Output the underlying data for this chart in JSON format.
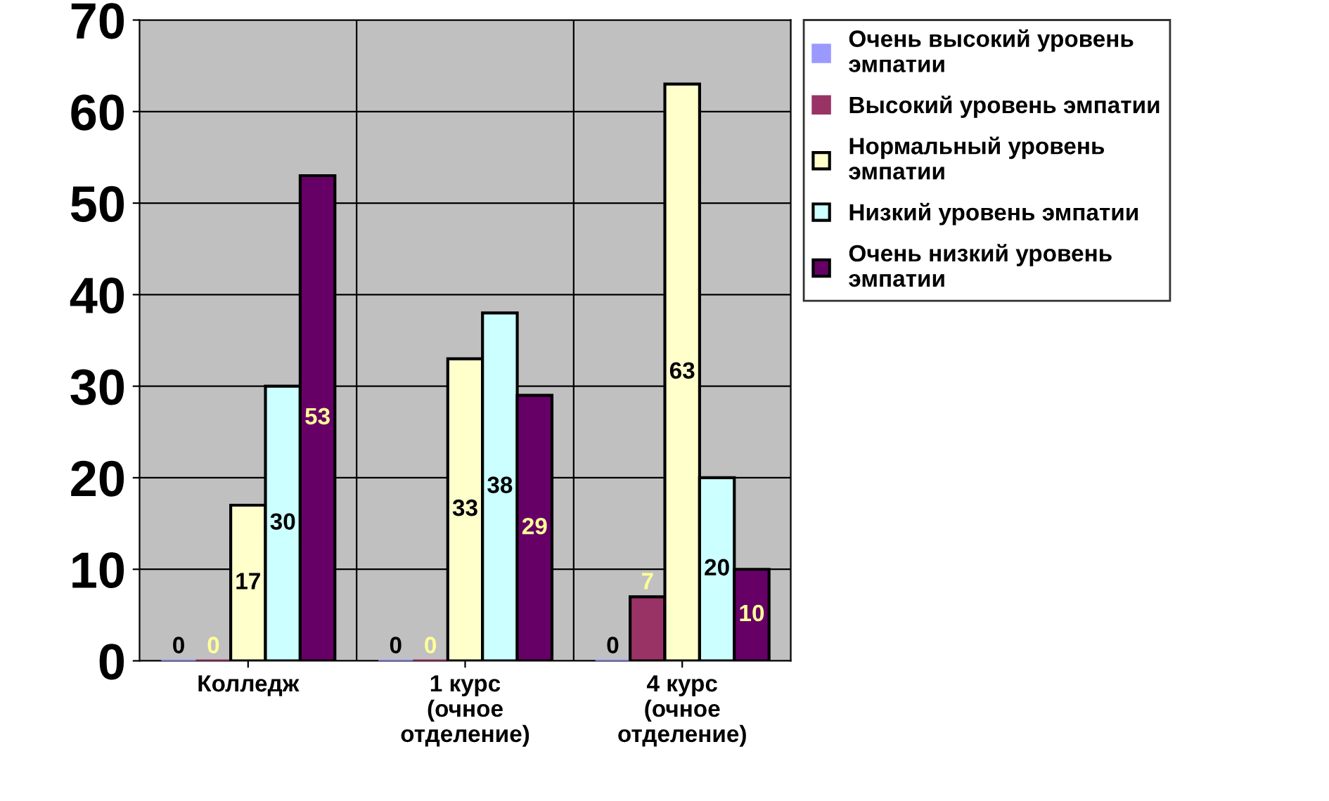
{
  "chart_data": {
    "type": "bar",
    "categories": [
      "Колледж",
      "1 курс\n(очное\nотделение)",
      "4 курс\n(очное\nотделение)"
    ],
    "series": [
      {
        "name": "Очень высокий уровень\nэмпатии",
        "color": "#9999ff",
        "values": [
          0,
          0,
          0
        ]
      },
      {
        "name": "Высокий уровень эмпатии",
        "color": "#993366",
        "values": [
          0,
          0,
          7
        ]
      },
      {
        "name": "Нормальный уровень\nэмпатии",
        "color": "#ffffcc",
        "values": [
          17,
          33,
          63
        ]
      },
      {
        "name": "Низкий уровень эмпатии",
        "color": "#ccffff",
        "values": [
          30,
          38,
          20
        ]
      },
      {
        "name": "Очень низкий уровень\nэмпатии",
        "color": "#660066",
        "values": [
          53,
          29,
          10
        ]
      }
    ],
    "ylim": [
      0,
      70
    ],
    "yticks": [
      0,
      10,
      20,
      30,
      40,
      50,
      60,
      70
    ],
    "grid": true,
    "legend": "right",
    "data_labels": true
  }
}
